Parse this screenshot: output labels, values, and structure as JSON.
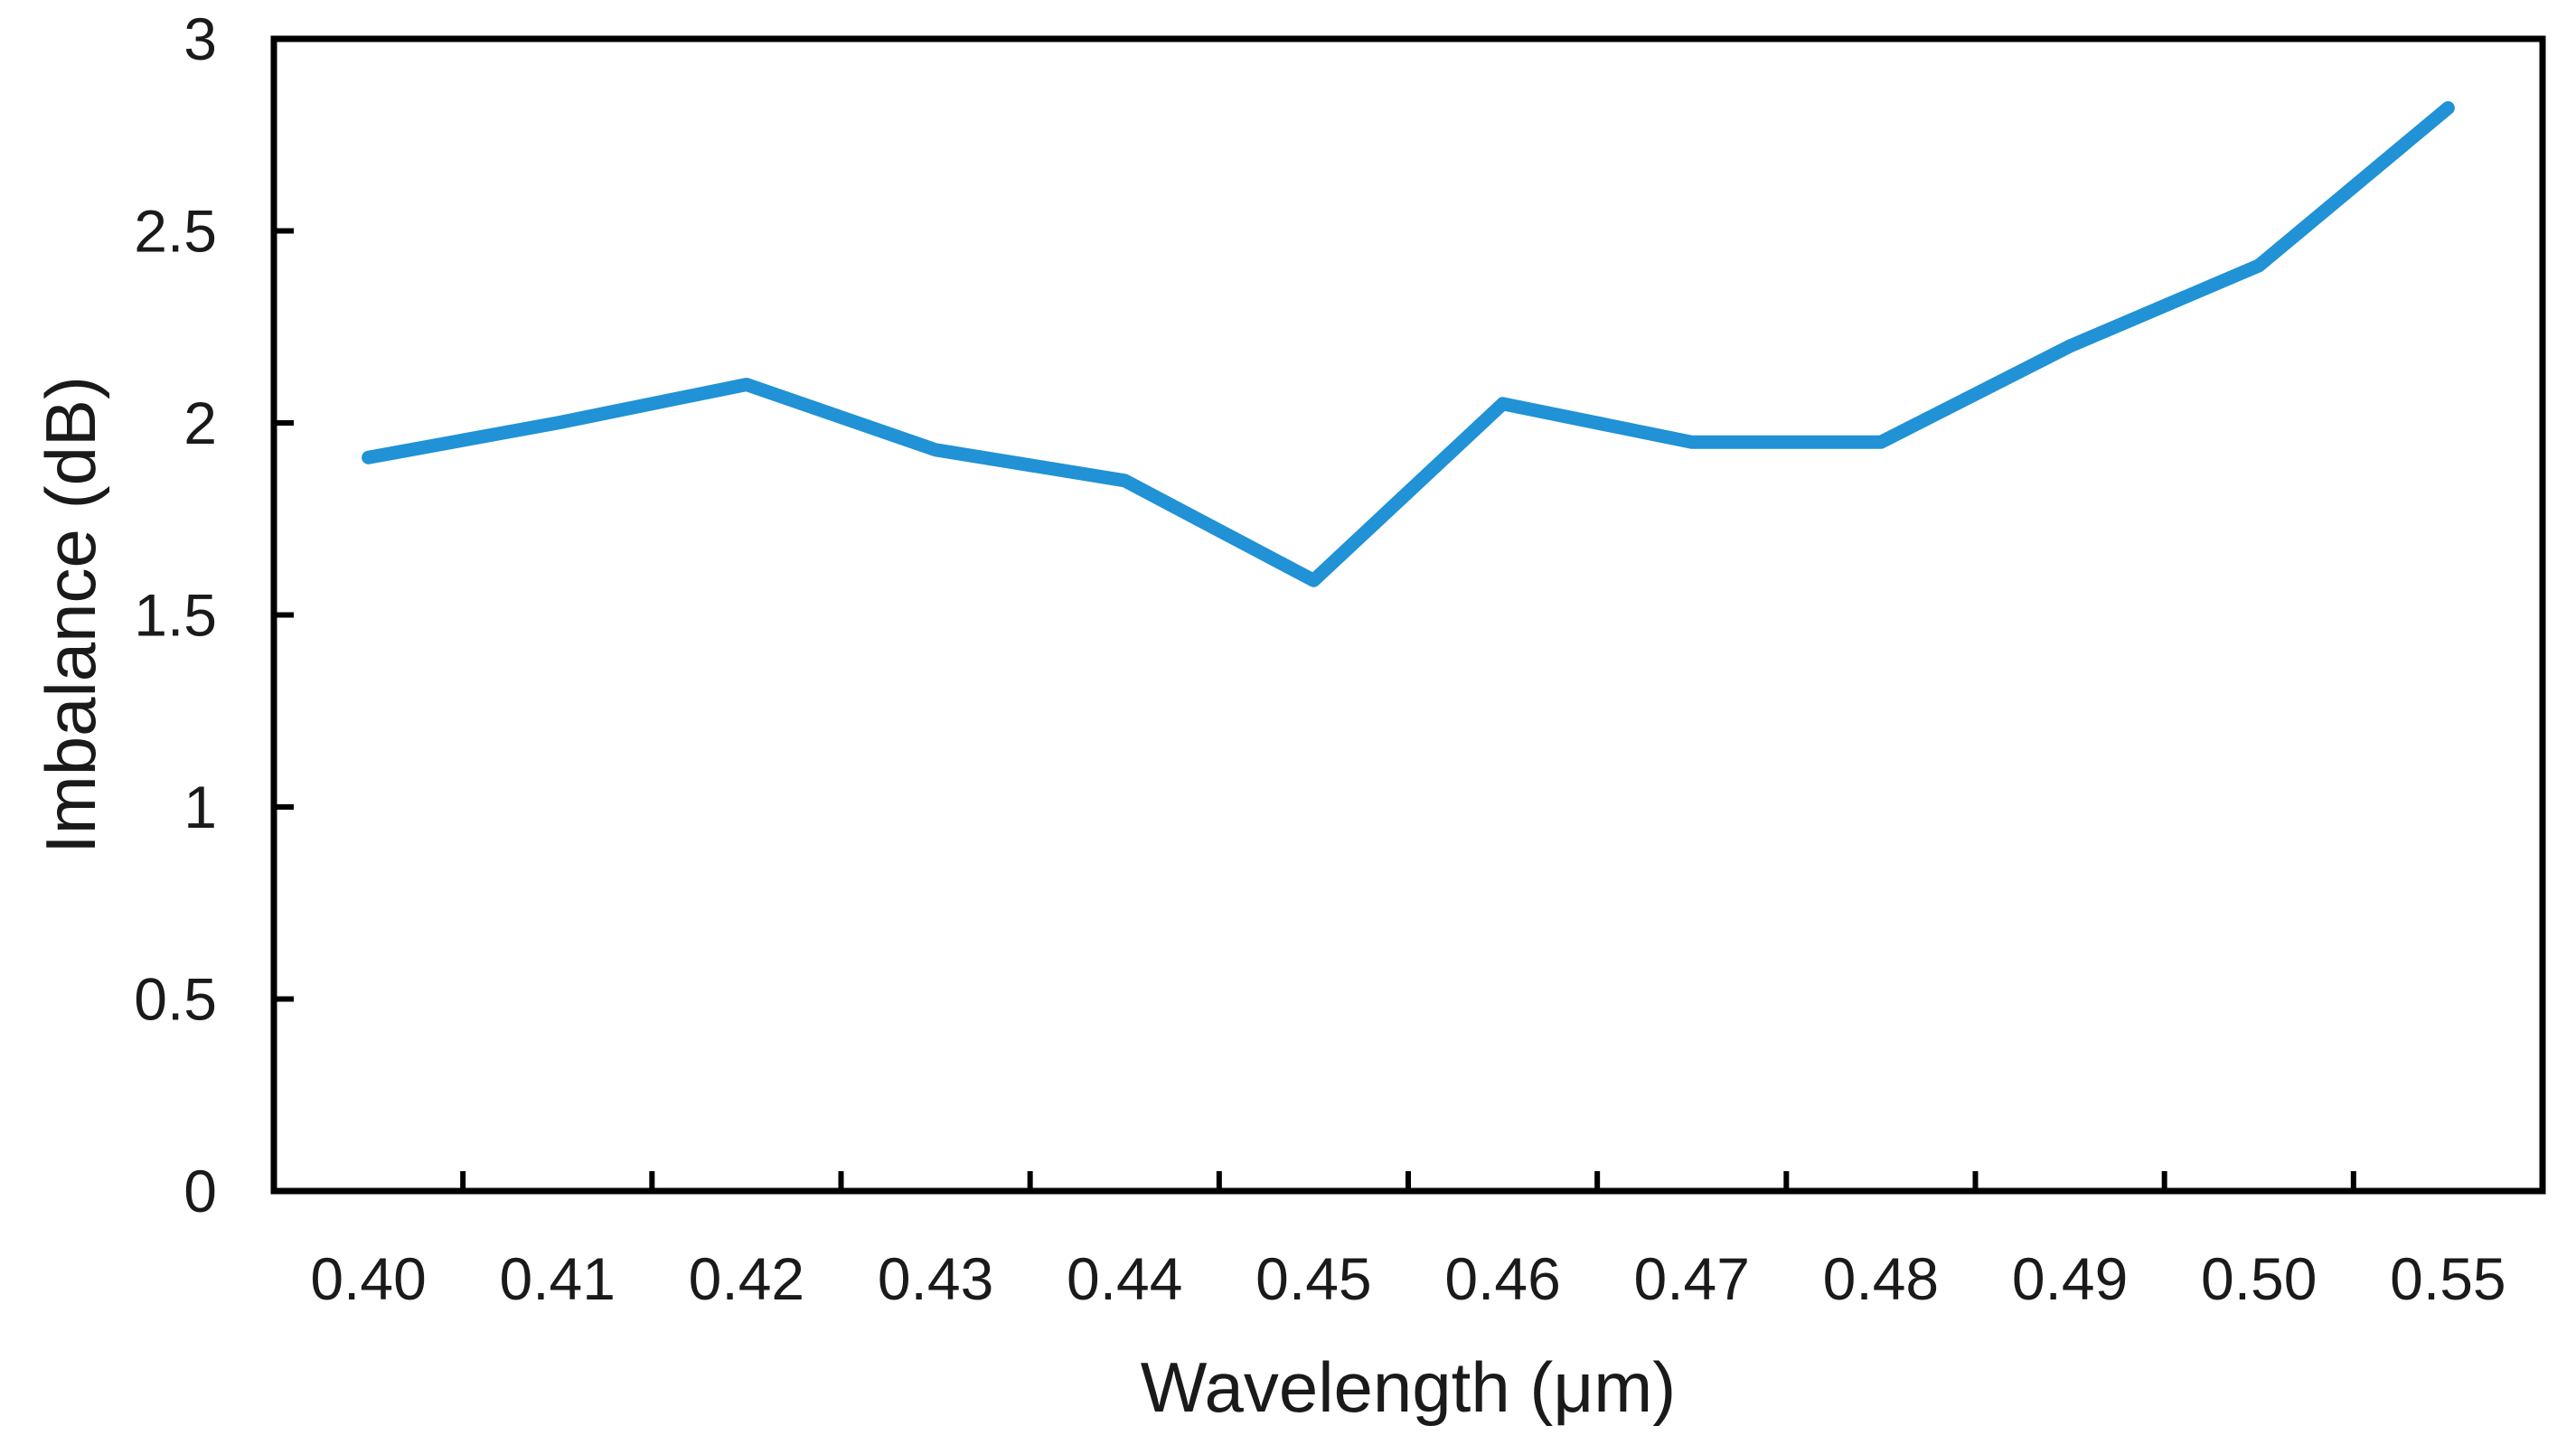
{
  "chart_data": {
    "type": "line",
    "title": "",
    "xlabel": "Wavelength (μm)",
    "ylabel": "Imbalance (dB)",
    "categories": [
      "0.40",
      "0.41",
      "0.42",
      "0.43",
      "0.44",
      "0.45",
      "0.46",
      "0.47",
      "0.48",
      "0.49",
      "0.50",
      "0.55"
    ],
    "series": [
      {
        "name": "Imbalance",
        "values": [
          1.91,
          2.0,
          2.1,
          1.93,
          1.85,
          1.59,
          2.05,
          1.95,
          1.95,
          2.2,
          2.41,
          2.82
        ]
      }
    ],
    "ylim": [
      0,
      3
    ],
    "yticks": [
      0,
      0.5,
      1,
      1.5,
      2,
      2.5,
      3
    ],
    "ytick_labels": [
      "0",
      "0.5",
      "1",
      "1.5",
      "2",
      "2.5",
      "3"
    ],
    "grid": false,
    "legend": "none",
    "line_color": "#2092D5",
    "axis_color": "#000000",
    "text_color": "#1A1A1A"
  }
}
